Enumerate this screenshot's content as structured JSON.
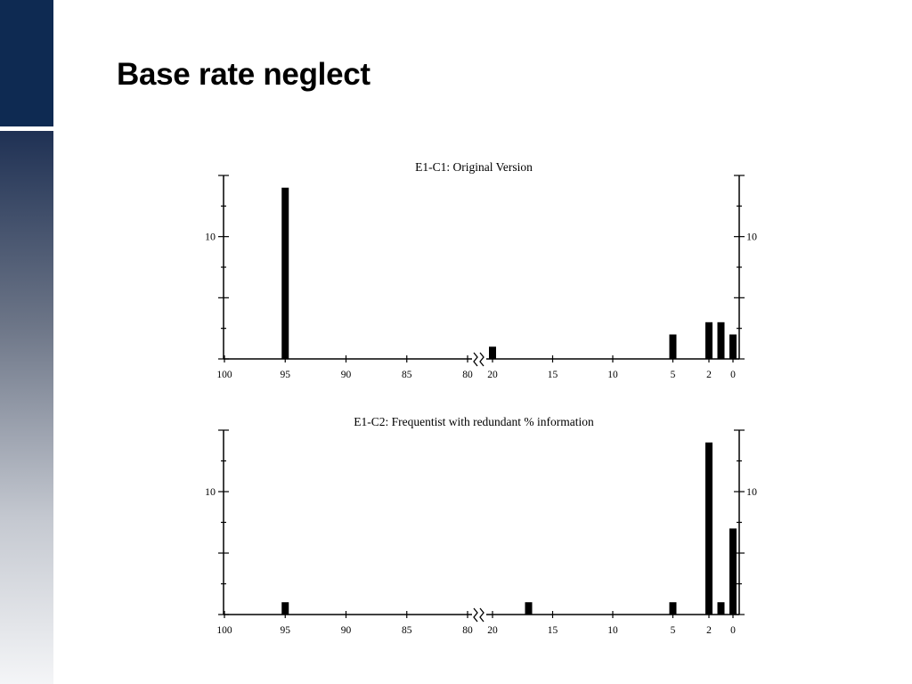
{
  "slide": {
    "title": "Base rate neglect"
  },
  "colors": {
    "sidebar_top": "#0e2a52",
    "bars": "#000000",
    "axes": "#000000"
  },
  "chart_data": [
    {
      "type": "bar",
      "title": "E1-C1:  Original Version",
      "xlabel": "",
      "ylabel": "",
      "x_ticks": [
        "100",
        "95",
        "90",
        "85",
        "80",
        "20",
        "15",
        "10",
        "5",
        "2",
        "0"
      ],
      "y_ticks_labeled": [
        "10"
      ],
      "ylim": [
        0,
        15
      ],
      "axis_break_between": [
        "80",
        "20"
      ],
      "bars": [
        {
          "x": 95,
          "value": 14
        },
        {
          "x": 20,
          "value": 1
        },
        {
          "x": 5,
          "value": 2
        },
        {
          "x": 2,
          "value": 3
        },
        {
          "x": 1,
          "value": 3
        },
        {
          "x": 0,
          "value": 2
        }
      ]
    },
    {
      "type": "bar",
      "title": "E1-C2:  Frequentist with redundant % information",
      "xlabel": "",
      "ylabel": "",
      "x_ticks": [
        "100",
        "95",
        "90",
        "85",
        "80",
        "20",
        "15",
        "10",
        "5",
        "2",
        "0"
      ],
      "y_ticks_labeled": [
        "10"
      ],
      "ylim": [
        0,
        15
      ],
      "axis_break_between": [
        "80",
        "20"
      ],
      "bars": [
        {
          "x": 95,
          "value": 1
        },
        {
          "x": 17,
          "value": 1
        },
        {
          "x": 5,
          "value": 1
        },
        {
          "x": 2,
          "value": 14
        },
        {
          "x": 1,
          "value": 1
        },
        {
          "x": 0,
          "value": 7
        }
      ]
    }
  ]
}
